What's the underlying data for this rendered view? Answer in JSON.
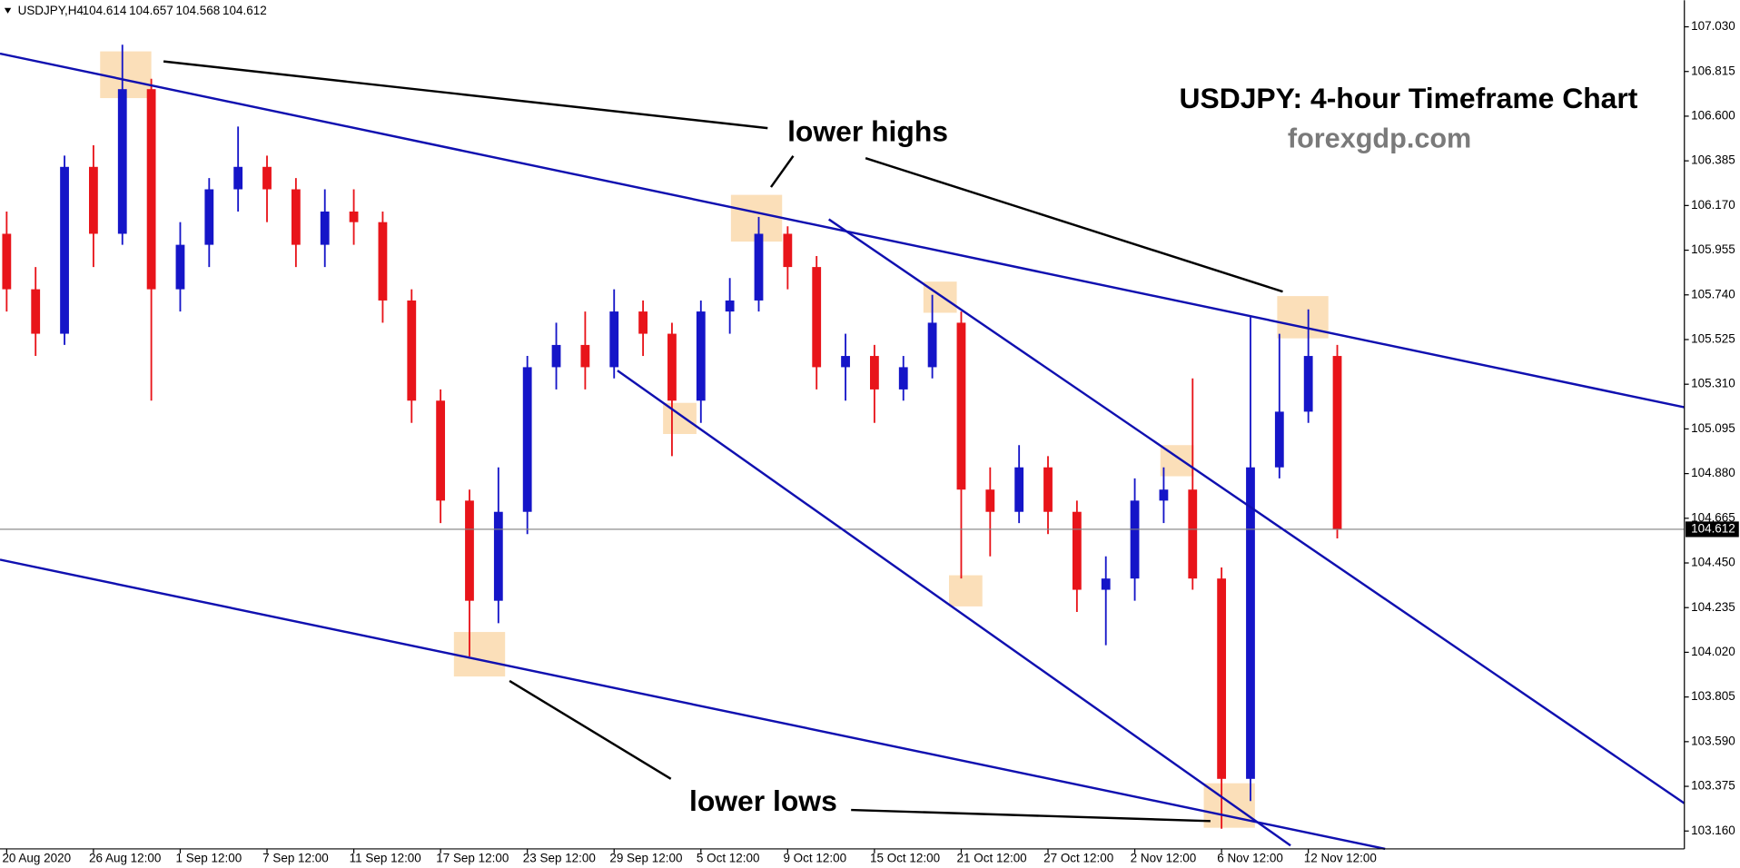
{
  "chart_data": {
    "type": "candlestick",
    "symbol": "USDJPY,H4",
    "header_ohlc": [
      104.614,
      104.657,
      104.568,
      104.612
    ],
    "title": "USDJPY: 4-hour Timeframe Chart",
    "subtitle": "forexgdp.com",
    "annotations": [
      "lower highs",
      "lower lows"
    ],
    "up_color": "#1515c8",
    "down_color": "#e8141a",
    "categories": [
      "20 Aug 2020",
      null,
      null,
      "26 Aug 12:00",
      null,
      null,
      "1 Sep 12:00",
      null,
      null,
      "7 Sep 12:00",
      null,
      null,
      "11 Sep 12:00",
      null,
      null,
      "17 Sep 12:00",
      null,
      null,
      "23 Sep 12:00",
      null,
      null,
      "29 Sep 12:00",
      null,
      null,
      "5 Oct 12:00",
      null,
      null,
      "9 Oct 12:00",
      null,
      null,
      "15 Oct 12:00",
      null,
      null,
      "21 Oct 12:00",
      null,
      null,
      "27 Oct 12:00",
      null,
      null,
      "2 Nov 12:00",
      null,
      null,
      "6 Nov 12:00",
      null,
      null,
      "12 Nov 12:00",
      null
    ],
    "open": [
      106.034,
      105.767,
      105.553,
      106.356,
      106.034,
      106.73,
      105.767,
      105.981,
      106.248,
      106.356,
      106.248,
      105.981,
      106.141,
      106.09,
      105.713,
      105.231,
      104.75,
      104.268,
      104.696,
      105.392,
      105.499,
      105.392,
      105.66,
      105.553,
      105.231,
      105.66,
      105.713,
      106.034,
      105.874,
      105.392,
      105.446,
      105.285,
      105.392,
      105.606,
      104.803,
      104.696,
      104.91,
      104.696,
      104.321,
      104.375,
      104.75,
      104.803,
      104.375,
      103.411,
      104.91,
      105.178,
      105.446
    ],
    "high": [
      106.141,
      105.874,
      106.41,
      106.46,
      106.944,
      106.78,
      106.09,
      106.302,
      106.55,
      106.41,
      106.302,
      106.248,
      106.248,
      106.141,
      105.767,
      105.285,
      104.803,
      104.91,
      105.446,
      105.606,
      105.66,
      105.767,
      105.713,
      105.606,
      105.713,
      105.821,
      106.115,
      106.07,
      105.927,
      105.553,
      105.499,
      105.446,
      105.74,
      105.66,
      104.91,
      105.017,
      104.964,
      104.75,
      104.482,
      104.857,
      104.91,
      105.338,
      104.428,
      105.633,
      105.553,
      105.67,
      105.499
    ],
    "low": [
      105.66,
      105.446,
      105.499,
      105.874,
      105.981,
      105.231,
      105.66,
      105.874,
      106.141,
      106.09,
      105.874,
      105.874,
      105.981,
      105.606,
      105.124,
      104.642,
      104.0,
      104.16,
      104.589,
      105.285,
      105.285,
      105.338,
      105.446,
      104.964,
      105.124,
      105.553,
      105.66,
      105.767,
      105.285,
      105.231,
      105.124,
      105.231,
      105.338,
      104.375,
      104.482,
      104.642,
      104.589,
      104.214,
      104.054,
      104.268,
      104.642,
      104.321,
      103.171,
      103.304,
      104.857,
      105.124,
      104.568
    ],
    "close": [
      105.767,
      105.553,
      106.356,
      106.034,
      106.73,
      105.767,
      105.981,
      106.248,
      106.356,
      106.248,
      105.981,
      106.141,
      106.09,
      105.713,
      105.231,
      104.75,
      104.268,
      104.696,
      105.392,
      105.499,
      105.392,
      105.66,
      105.553,
      105.231,
      105.66,
      105.713,
      106.034,
      105.874,
      105.392,
      105.446,
      105.285,
      105.392,
      105.606,
      104.803,
      104.696,
      104.91,
      104.696,
      104.321,
      104.375,
      104.75,
      104.803,
      104.375,
      103.411,
      104.91,
      105.178,
      105.446,
      104.612
    ],
    "ylim": [
      103.074,
      107.158
    ],
    "yticks": [
      {
        "value": 107.03,
        "label": "107.030"
      },
      106.815,
      {
        "value": 106.6,
        "label": "106.600"
      },
      106.385,
      {
        "value": 106.17,
        "label": "106.170"
      },
      105.955,
      {
        "value": 105.74,
        "label": "105.740"
      },
      105.525,
      {
        "value": 105.31,
        "label": "105.310"
      },
      105.095,
      {
        "value": 104.88,
        "label": "104.880"
      },
      104.665,
      {
        "value": 104.45,
        "label": "104.450"
      },
      104.235,
      {
        "value": 104.02,
        "label": "104.020"
      },
      103.805,
      {
        "value": 103.59,
        "label": "103.590"
      },
      103.375,
      {
        "value": 103.16,
        "label": "103.160"
      }
    ]
  }
}
